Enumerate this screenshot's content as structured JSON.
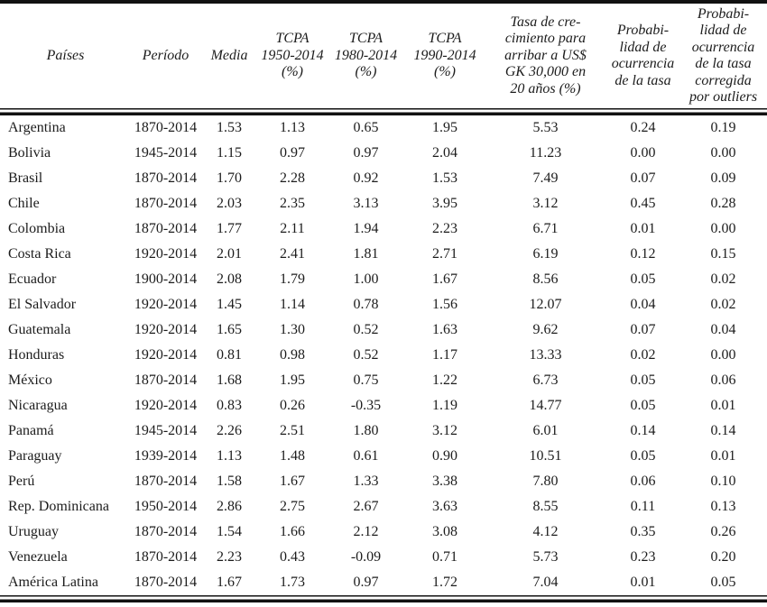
{
  "table": {
    "columns": [
      {
        "key": "pais",
        "label": "Países"
      },
      {
        "key": "periodo",
        "label": "Período"
      },
      {
        "key": "media",
        "label": "Media"
      },
      {
        "key": "tcpa_1950",
        "label": "TCPA\n1950-2014\n(%)"
      },
      {
        "key": "tcpa_1980",
        "label": "TCPA\n1980-2014\n(%)"
      },
      {
        "key": "tcpa_1990",
        "label": "TCPA\n1990-2014\n(%)"
      },
      {
        "key": "tasa_30000",
        "label": "Tasa de cre-\ncimiento para\narribar a US$\nGK 30,000 en\n20 años (%)"
      },
      {
        "key": "prob",
        "label": "Probabi-\nlidad de\nocurrencia\nde la tasa"
      },
      {
        "key": "prob_corr",
        "label": "Probabi-\nlidad de\nocurrencia\nde la tasa\ncorregida\npor outliers"
      }
    ],
    "rows": [
      [
        "Argentina",
        "1870-2014",
        "1.53",
        "1.13",
        "0.65",
        "1.95",
        "5.53",
        "0.24",
        "0.19"
      ],
      [
        "Bolivia",
        "1945-2014",
        "1.15",
        "0.97",
        "0.97",
        "2.04",
        "11.23",
        "0.00",
        "0.00"
      ],
      [
        "Brasil",
        "1870-2014",
        "1.70",
        "2.28",
        "0.92",
        "1.53",
        "7.49",
        "0.07",
        "0.09"
      ],
      [
        "Chile",
        "1870-2014",
        "2.03",
        "2.35",
        "3.13",
        "3.95",
        "3.12",
        "0.45",
        "0.28"
      ],
      [
        "Colombia",
        "1870-2014",
        "1.77",
        "2.11",
        "1.94",
        "2.23",
        "6.71",
        "0.01",
        "0.00"
      ],
      [
        "Costa Rica",
        "1920-2014",
        "2.01",
        "2.41",
        "1.81",
        "2.71",
        "6.19",
        "0.12",
        "0.15"
      ],
      [
        "Ecuador",
        "1900-2014",
        "2.08",
        "1.79",
        "1.00",
        "1.67",
        "8.56",
        "0.05",
        "0.02"
      ],
      [
        "El Salvador",
        "1920-2014",
        "1.45",
        "1.14",
        "0.78",
        "1.56",
        "12.07",
        "0.04",
        "0.02"
      ],
      [
        "Guatemala",
        "1920-2014",
        "1.65",
        "1.30",
        "0.52",
        "1.63",
        "9.62",
        "0.07",
        "0.04"
      ],
      [
        "Honduras",
        "1920-2014",
        "0.81",
        "0.98",
        "0.52",
        "1.17",
        "13.33",
        "0.02",
        "0.00"
      ],
      [
        "México",
        "1870-2014",
        "1.68",
        "1.95",
        "0.75",
        "1.22",
        "6.73",
        "0.05",
        "0.06"
      ],
      [
        "Nicaragua",
        "1920-2014",
        "0.83",
        "0.26",
        "-0.35",
        "1.19",
        "14.77",
        "0.05",
        "0.01"
      ],
      [
        "Panamá",
        "1945-2014",
        "2.26",
        "2.51",
        "1.80",
        "3.12",
        "6.01",
        "0.14",
        "0.14"
      ],
      [
        "Paraguay",
        "1939-2014",
        "1.13",
        "1.48",
        "0.61",
        "0.90",
        "10.51",
        "0.05",
        "0.01"
      ],
      [
        "Perú",
        "1870-2014",
        "1.58",
        "1.67",
        "1.33",
        "3.38",
        "7.80",
        "0.06",
        "0.10"
      ],
      [
        "Rep. Dominicana",
        "1950-2014",
        "2.86",
        "2.75",
        "2.67",
        "3.63",
        "8.55",
        "0.11",
        "0.13"
      ],
      [
        "Uruguay",
        "1870-2014",
        "1.54",
        "1.66",
        "2.12",
        "3.08",
        "4.12",
        "0.35",
        "0.26"
      ],
      [
        "Venezuela",
        "1870-2014",
        "2.23",
        "0.43",
        "-0.09",
        "0.71",
        "5.73",
        "0.23",
        "0.20"
      ],
      [
        "América Latina",
        "1870-2014",
        "1.67",
        "1.73",
        "0.97",
        "1.72",
        "7.04",
        "0.01",
        "0.05"
      ]
    ]
  },
  "colors": {
    "text": "#1c1c1c",
    "rule": "#111111",
    "background": "#ffffff"
  }
}
